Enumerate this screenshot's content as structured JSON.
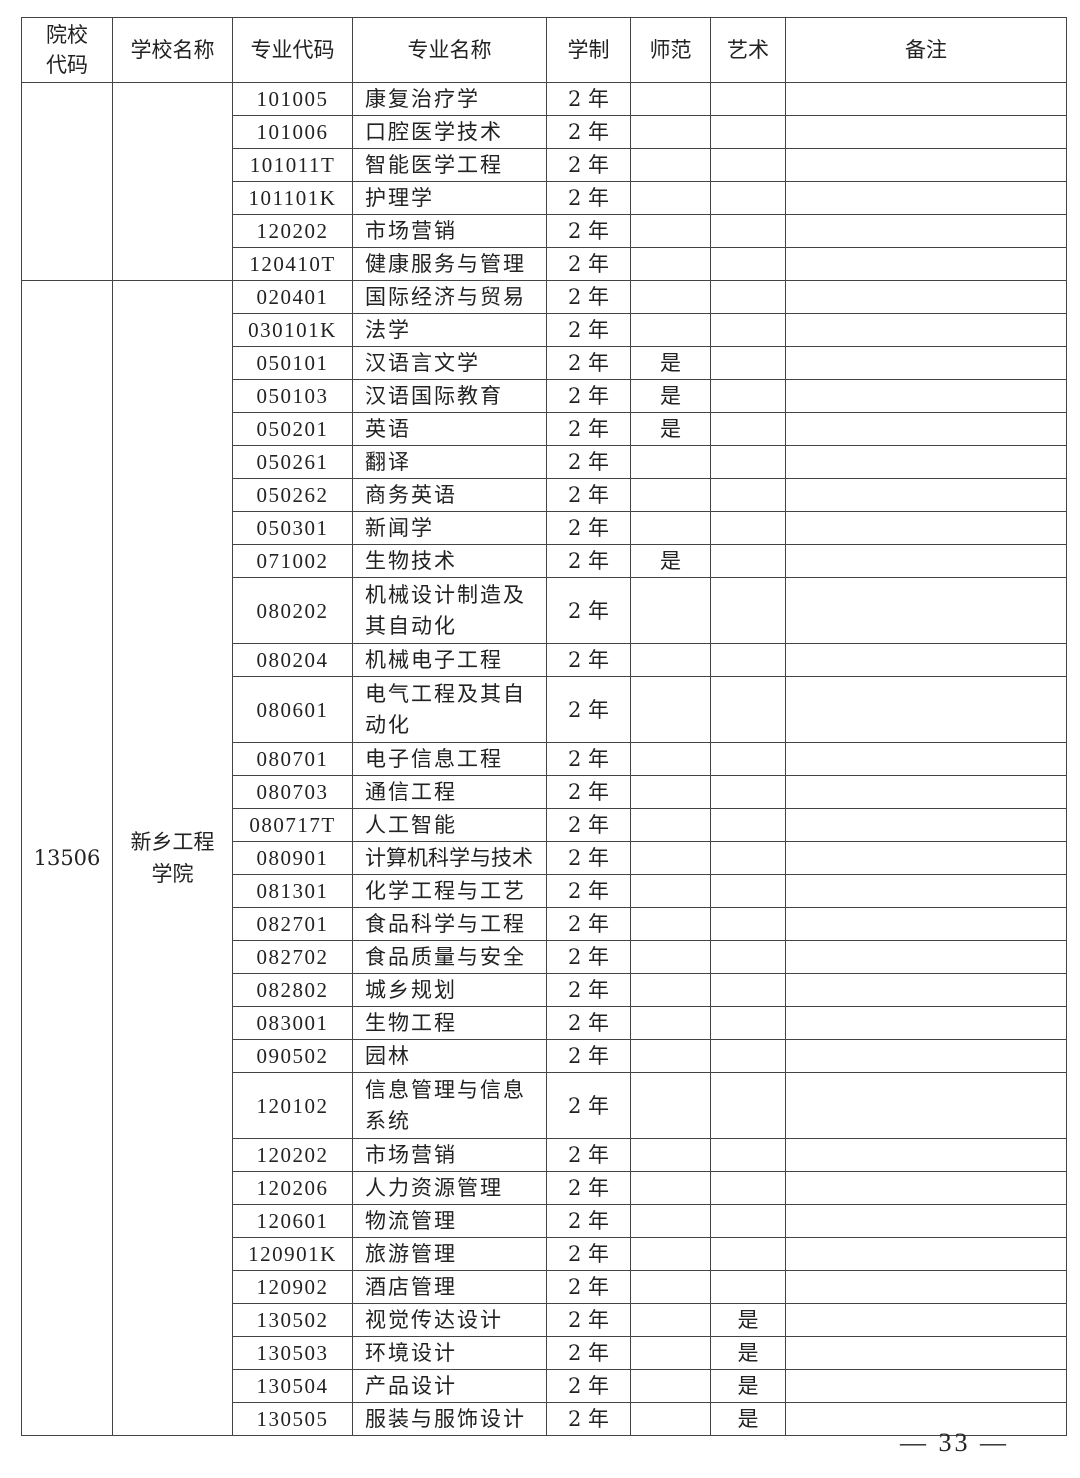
{
  "headers": [
    "院校代码",
    "学校名称",
    "专业代码",
    "专业名称",
    "学制",
    "师范",
    "艺术",
    "备注"
  ],
  "groups": [
    {
      "school_code": "",
      "school_name": "",
      "rows": [
        {
          "code": "101005",
          "name": "康复治疗学",
          "years": "2 年",
          "normal": "",
          "art": "",
          "note": ""
        },
        {
          "code": "101006",
          "name": "口腔医学技术",
          "years": "2 年",
          "normal": "",
          "art": "",
          "note": ""
        },
        {
          "code": "101011T",
          "name": "智能医学工程",
          "years": "2 年",
          "normal": "",
          "art": "",
          "note": ""
        },
        {
          "code": "101101K",
          "name": "护理学",
          "years": "2 年",
          "normal": "",
          "art": "",
          "note": ""
        },
        {
          "code": "120202",
          "name": "市场营销",
          "years": "2 年",
          "normal": "",
          "art": "",
          "note": ""
        },
        {
          "code": "120410T",
          "name": "健康服务与管理",
          "years": "2 年",
          "normal": "",
          "art": "",
          "note": ""
        }
      ]
    },
    {
      "school_code": "13506",
      "school_name": "新乡工程学院",
      "rows": [
        {
          "code": "020401",
          "name": "国际经济与贸易",
          "years": "2 年",
          "normal": "",
          "art": "",
          "note": ""
        },
        {
          "code": "030101K",
          "name": "法学",
          "years": "2 年",
          "normal": "",
          "art": "",
          "note": ""
        },
        {
          "code": "050101",
          "name": "汉语言文学",
          "years": "2 年",
          "normal": "是",
          "art": "",
          "note": ""
        },
        {
          "code": "050103",
          "name": "汉语国际教育",
          "years": "2 年",
          "normal": "是",
          "art": "",
          "note": ""
        },
        {
          "code": "050201",
          "name": "英语",
          "years": "2 年",
          "normal": "是",
          "art": "",
          "note": ""
        },
        {
          "code": "050261",
          "name": "翻译",
          "years": "2 年",
          "normal": "",
          "art": "",
          "note": ""
        },
        {
          "code": "050262",
          "name": "商务英语",
          "years": "2 年",
          "normal": "",
          "art": "",
          "note": ""
        },
        {
          "code": "050301",
          "name": "新闻学",
          "years": "2 年",
          "normal": "",
          "art": "",
          "note": ""
        },
        {
          "code": "071002",
          "name": "生物技术",
          "years": "2 年",
          "normal": "是",
          "art": "",
          "note": ""
        },
        {
          "code": "080202",
          "name": "机械设计制造及其自动化",
          "years": "2 年",
          "normal": "",
          "art": "",
          "note": ""
        },
        {
          "code": "080204",
          "name": "机械电子工程",
          "years": "2 年",
          "normal": "",
          "art": "",
          "note": ""
        },
        {
          "code": "080601",
          "name": "电气工程及其自动化",
          "years": "2 年",
          "normal": "",
          "art": "",
          "note": ""
        },
        {
          "code": "080701",
          "name": "电子信息工程",
          "years": "2 年",
          "normal": "",
          "art": "",
          "note": ""
        },
        {
          "code": "080703",
          "name": "通信工程",
          "years": "2 年",
          "normal": "",
          "art": "",
          "note": ""
        },
        {
          "code": "080717T",
          "name": "人工智能",
          "years": "2 年",
          "normal": "",
          "art": "",
          "note": ""
        },
        {
          "code": "080901",
          "name": "计算机科学与技术",
          "years": "2 年",
          "normal": "",
          "art": "",
          "note": ""
        },
        {
          "code": "081301",
          "name": "化学工程与工艺",
          "years": "2 年",
          "normal": "",
          "art": "",
          "note": ""
        },
        {
          "code": "082701",
          "name": "食品科学与工程",
          "years": "2 年",
          "normal": "",
          "art": "",
          "note": ""
        },
        {
          "code": "082702",
          "name": "食品质量与安全",
          "years": "2 年",
          "normal": "",
          "art": "",
          "note": ""
        },
        {
          "code": "082802",
          "name": "城乡规划",
          "years": "2 年",
          "normal": "",
          "art": "",
          "note": ""
        },
        {
          "code": "083001",
          "name": "生物工程",
          "years": "2 年",
          "normal": "",
          "art": "",
          "note": ""
        },
        {
          "code": "090502",
          "name": "园林",
          "years": "2 年",
          "normal": "",
          "art": "",
          "note": ""
        },
        {
          "code": "120102",
          "name": "信息管理与信息系统",
          "years": "2 年",
          "normal": "",
          "art": "",
          "note": ""
        },
        {
          "code": "120202",
          "name": "市场营销",
          "years": "2 年",
          "normal": "",
          "art": "",
          "note": ""
        },
        {
          "code": "120206",
          "name": "人力资源管理",
          "years": "2 年",
          "normal": "",
          "art": "",
          "note": ""
        },
        {
          "code": "120601",
          "name": "物流管理",
          "years": "2 年",
          "normal": "",
          "art": "",
          "note": ""
        },
        {
          "code": "120901K",
          "name": "旅游管理",
          "years": "2 年",
          "normal": "",
          "art": "",
          "note": ""
        },
        {
          "code": "120902",
          "name": "酒店管理",
          "years": "2 年",
          "normal": "",
          "art": "",
          "note": ""
        },
        {
          "code": "130502",
          "name": "视觉传达设计",
          "years": "2 年",
          "normal": "",
          "art": "是",
          "note": ""
        },
        {
          "code": "130503",
          "name": "环境设计",
          "years": "2 年",
          "normal": "",
          "art": "是",
          "note": ""
        },
        {
          "code": "130504",
          "name": "产品设计",
          "years": "2 年",
          "normal": "",
          "art": "是",
          "note": ""
        },
        {
          "code": "130505",
          "name": "服装与服饰设计",
          "years": "2 年",
          "normal": "",
          "art": "是",
          "note": ""
        }
      ]
    }
  ],
  "page_number": "— 33 —"
}
